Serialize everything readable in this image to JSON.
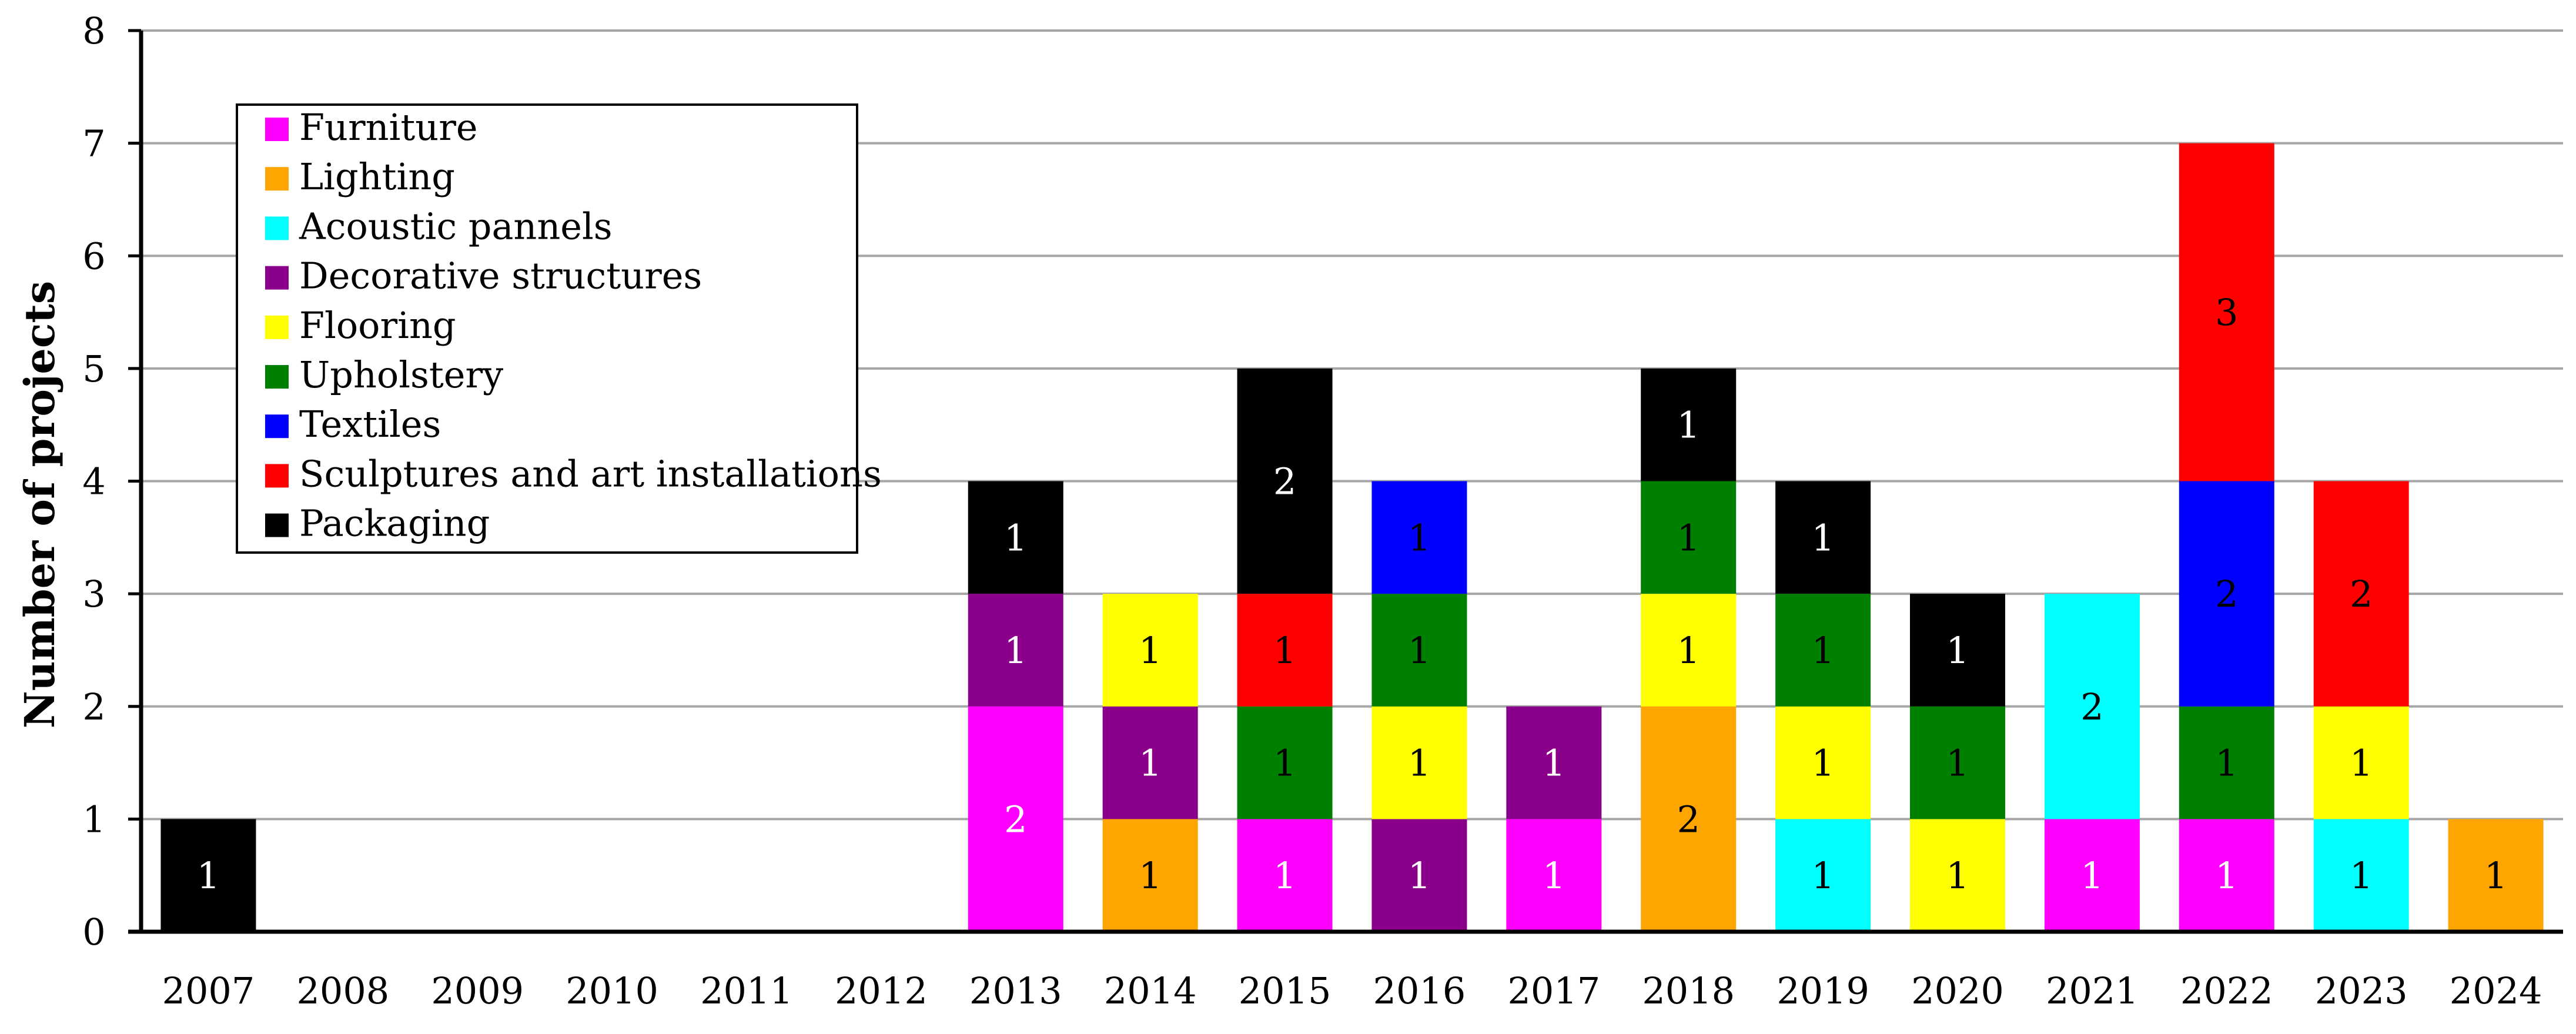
{
  "chart_data": {
    "type": "bar",
    "stacked": true,
    "title": "",
    "xlabel": "",
    "ylabel": "Number of projects",
    "ylim": [
      0,
      8
    ],
    "yticks": [
      0,
      1,
      2,
      3,
      4,
      5,
      6,
      7,
      8
    ],
    "grid": true,
    "legend_position": "top-left",
    "categories": [
      "2007",
      "2008",
      "2009",
      "2010",
      "2011",
      "2012",
      "2013",
      "2014",
      "2015",
      "2016",
      "2017",
      "2018",
      "2019",
      "2020",
      "2021",
      "2022",
      "2023",
      "2024"
    ],
    "series": [
      {
        "name": "Furniture",
        "color": "#FF00FF",
        "label_color": "#FFFFFF",
        "values": [
          0,
          0,
          0,
          0,
          0,
          0,
          2,
          0,
          1,
          0,
          1,
          0,
          0,
          0,
          1,
          1,
          0,
          0
        ]
      },
      {
        "name": "Lighting",
        "color": "#FFA500",
        "label_color": "#000000",
        "values": [
          0,
          0,
          0,
          0,
          0,
          0,
          0,
          1,
          0,
          0,
          0,
          2,
          0,
          0,
          0,
          0,
          0,
          1
        ]
      },
      {
        "name": "Acoustic pannels",
        "color": "#00FFFF",
        "label_color": "#000000",
        "values": [
          0,
          0,
          0,
          0,
          0,
          0,
          0,
          0,
          0,
          0,
          0,
          0,
          1,
          0,
          2,
          0,
          1,
          0
        ]
      },
      {
        "name": "Decorative structures",
        "color": "#8B008B",
        "label_color": "#FFFFFF",
        "values": [
          0,
          0,
          0,
          0,
          0,
          0,
          1,
          1,
          0,
          1,
          1,
          0,
          0,
          0,
          0,
          0,
          0,
          0
        ]
      },
      {
        "name": "Flooring",
        "color": "#FFFF00",
        "label_color": "#000000",
        "values": [
          0,
          0,
          0,
          0,
          0,
          0,
          0,
          1,
          0,
          1,
          0,
          1,
          1,
          1,
          0,
          0,
          1,
          0
        ]
      },
      {
        "name": "Upholstery",
        "color": "#008000",
        "label_color": "#000000",
        "values": [
          0,
          0,
          0,
          0,
          0,
          0,
          0,
          0,
          1,
          1,
          0,
          1,
          1,
          1,
          0,
          1,
          0,
          0
        ]
      },
      {
        "name": "Textiles",
        "color": "#0000FF",
        "label_color": "#000000",
        "values": [
          0,
          0,
          0,
          0,
          0,
          0,
          0,
          0,
          0,
          1,
          0,
          0,
          0,
          0,
          0,
          2,
          0,
          0
        ]
      },
      {
        "name": "Sculptures and art installations",
        "color": "#FF0000",
        "label_color": "#000000",
        "values": [
          0,
          0,
          0,
          0,
          0,
          0,
          0,
          0,
          1,
          0,
          0,
          0,
          0,
          0,
          0,
          3,
          2,
          0
        ]
      },
      {
        "name": "Packaging",
        "color": "#000000",
        "label_color": "#FFFFFF",
        "values": [
          1,
          0,
          0,
          0,
          0,
          0,
          1,
          0,
          2,
          0,
          0,
          1,
          1,
          1,
          0,
          0,
          0,
          0
        ]
      }
    ]
  }
}
